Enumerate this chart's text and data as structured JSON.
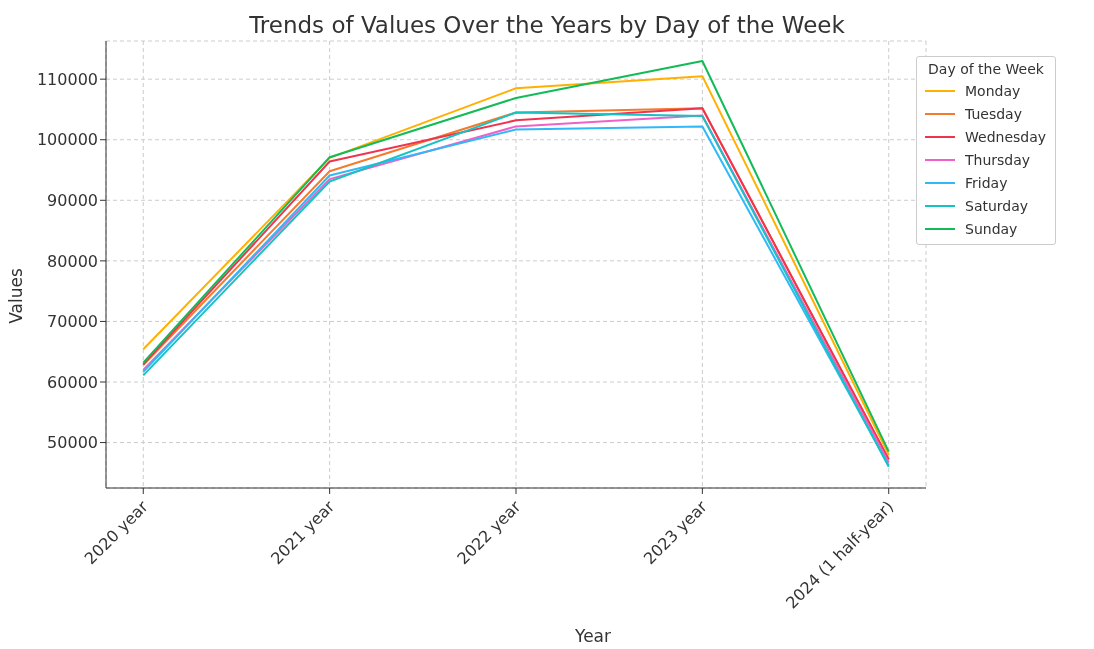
{
  "chart_data": {
    "type": "line",
    "title": "Trends of Values Over the Years by Day of the Week",
    "xlabel": "Year",
    "ylabel": "Values",
    "legend_title": "Day of the Week",
    "categories": [
      "2020 year",
      "2021 year",
      "2022 year",
      "2023 year",
      "2024 (1 half-year)"
    ],
    "series": [
      {
        "name": "Monday",
        "color": "#ffb000",
        "values": [
          65400,
          97000,
          108500,
          110500,
          48000
        ]
      },
      {
        "name": "Tuesday",
        "color": "#f57a2c",
        "values": [
          62800,
          94800,
          104500,
          105200,
          47200
        ]
      },
      {
        "name": "Wednesday",
        "color": "#f0344f",
        "values": [
          62900,
          96400,
          103200,
          105200,
          47200
        ]
      },
      {
        "name": "Thursday",
        "color": "#f060c8",
        "values": [
          62000,
          93500,
          102200,
          104000,
          46700
        ]
      },
      {
        "name": "Friday",
        "color": "#30b8f8",
        "values": [
          61700,
          94100,
          101700,
          102200,
          46200
        ]
      },
      {
        "name": "Saturday",
        "color": "#14c4c4",
        "values": [
          61100,
          93100,
          104500,
          103900,
          46000
        ]
      },
      {
        "name": "Sunday",
        "color": "#12bb58",
        "values": [
          63200,
          97100,
          106900,
          113000,
          48500
        ]
      }
    ],
    "ylim": [
      42500,
      116300
    ],
    "yticks": [
      50000,
      60000,
      70000,
      80000,
      90000,
      100000,
      110000
    ],
    "grid": true,
    "legend": "top right",
    "line_style": "solid",
    "marker": "none"
  }
}
